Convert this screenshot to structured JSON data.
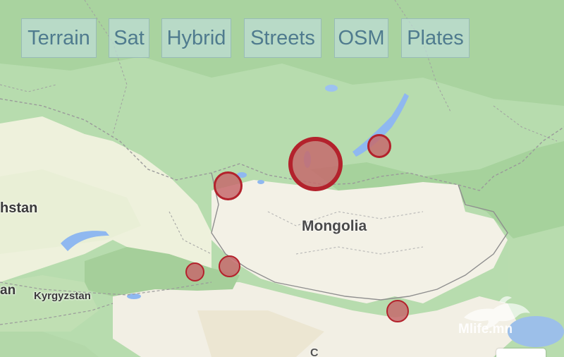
{
  "map": {
    "layer_buttons": [
      {
        "label": "Terrain"
      },
      {
        "label": "Sat"
      },
      {
        "label": "Hybrid"
      },
      {
        "label": "Streets"
      },
      {
        "label": "OSM"
      },
      {
        "label": "Plates"
      }
    ],
    "labels": {
      "country_mongolia": "Mongolia",
      "country_kazakhstan_partial": "hstan",
      "country_kyrgyzstan": "Kyrgyzstan",
      "partial_left": "an",
      "partial_bottom": "C"
    },
    "markers": [
      {
        "name": "marker-lake-baikal-north"
      },
      {
        "name": "marker-khovsgol-large"
      },
      {
        "name": "marker-altai-west"
      },
      {
        "name": "marker-tianshan-west"
      },
      {
        "name": "marker-tianshan-east"
      },
      {
        "name": "marker-gobi-south"
      }
    ],
    "colors": {
      "marker_fill": "#c56a6c",
      "marker_stroke": "#b3222c",
      "forest": "#aed6a6",
      "desert": "#f4f1e8",
      "water": "#8fb8f0"
    },
    "watermark_text": "Mlife.mn"
  }
}
